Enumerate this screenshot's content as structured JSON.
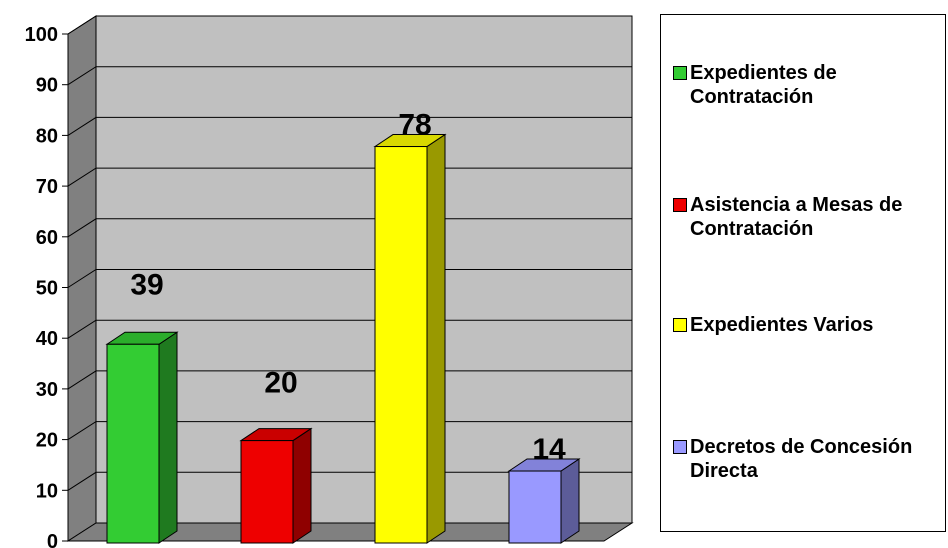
{
  "chart_data": {
    "type": "bar",
    "categories": [
      "Expedientes de Contratación",
      "Asistencia a Mesas de Contratación",
      "Expedientes Varios",
      "Decretos de Concesión Directa"
    ],
    "values": [
      39,
      20,
      78,
      14
    ],
    "data_labels": [
      "39",
      "20",
      "78",
      "14"
    ],
    "colors": [
      "#33cc33",
      "#ee0000",
      "#ffff00",
      "#9999ff"
    ],
    "ylim": [
      0,
      100
    ],
    "yticks": [
      "0",
      "10",
      "20",
      "30",
      "40",
      "50",
      "60",
      "70",
      "80",
      "90",
      "100"
    ],
    "grid": true,
    "three_d": true,
    "legend_position": "right",
    "title": "",
    "xlabel": "",
    "ylabel": ""
  },
  "legend": [
    {
      "label": "Expedientes de Contratación",
      "color": "#33cc33"
    },
    {
      "label": "Asistencia a Mesas de Contratación",
      "color": "#ee0000"
    },
    {
      "label": "Expedientes Varios",
      "color": "#ffff00"
    },
    {
      "label": "Decretos de Concesión Directa",
      "color": "#9999ff"
    }
  ]
}
